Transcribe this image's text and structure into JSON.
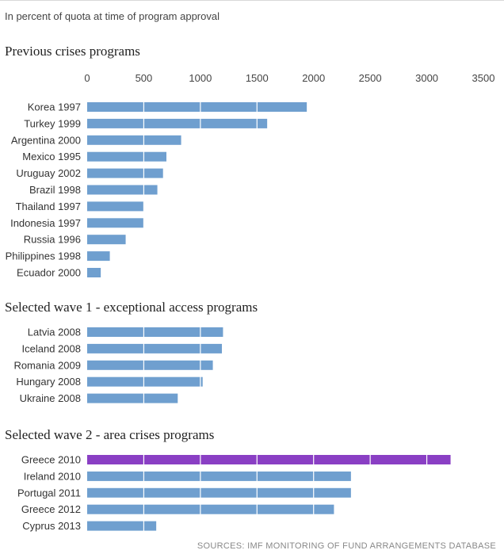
{
  "subtitle": "In percent of quota at time of program approval",
  "source": "SOURCES: IMF MONITORING OF FUND ARRANGEMENTS DATABASE",
  "colors": {
    "bar": "#6f9fcf",
    "highlight": "#8a3fc4",
    "grid": "#ffffff"
  },
  "chart_data": {
    "type": "bar",
    "orientation": "horizontal",
    "xlim": [
      0,
      3500
    ],
    "xticks": [
      0,
      500,
      1000,
      1500,
      2000,
      2500,
      3000,
      3500
    ],
    "grid": true,
    "groups": [
      {
        "title": "Previous crises programs",
        "categories": [
          "Korea 1997",
          "Turkey 1999",
          "Argentina 2000",
          "Mexico 1995",
          "Uruguay 2002",
          "Brazil 1998",
          "Thailand 1997",
          "Indonesia 1997",
          "Russia 1996",
          "Philippines 1998",
          "Ecuador 2000"
        ],
        "values": [
          1940,
          1590,
          830,
          700,
          670,
          620,
          500,
          500,
          340,
          200,
          120
        ]
      },
      {
        "title": "Selected wave 1 - exceptional access programs",
        "categories": [
          "Latvia 2008",
          "Iceland 2008",
          "Romania 2009",
          "Hungary 2008",
          "Ukraine 2008"
        ],
        "values": [
          1200,
          1190,
          1110,
          1020,
          800
        ]
      },
      {
        "title": "Selected wave 2 - area crises programs",
        "categories": [
          "Greece 2010",
          "Ireland 2010",
          "Portugal 2011",
          "Greece 2012",
          "Cyprus 2013"
        ],
        "values": [
          3210,
          2330,
          2330,
          2180,
          610
        ],
        "highlight": [
          "Greece 2010"
        ]
      }
    ]
  }
}
